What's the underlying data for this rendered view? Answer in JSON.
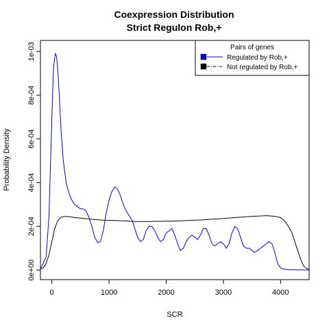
{
  "chart_data": {
    "type": "line",
    "title": [
      "Coexpression Distribution",
      "Strict Regulon Rob,+"
    ],
    "xlabel": "SCR",
    "ylabel": "Probability Density",
    "xlim": [
      -200,
      4500
    ],
    "ylim": [
      0,
      0.00101
    ],
    "x_ticks": [
      0,
      1000,
      2000,
      3000,
      4000
    ],
    "x_tick_labels": [
      "0",
      "1000",
      "2000",
      "3000",
      "4000"
    ],
    "y_ticks": [
      0,
      0.0002,
      0.0004,
      0.0006,
      0.0008,
      0.001
    ],
    "y_tick_labels": [
      "0e+00",
      "2e-04",
      "4e-04",
      "6e-04",
      "8e-04",
      "1e-03"
    ],
    "grid": false,
    "legend": {
      "title": "Pairs of genes",
      "placement": "top-right",
      "entries": [
        "Regulated by  Rob,+",
        "Not regulated by  Rob,+"
      ]
    },
    "series": [
      {
        "name": "Regulated by  Rob,+",
        "color": "#0000ff",
        "x": [
          -200,
          -100,
          -50,
          0,
          30,
          60,
          80,
          100,
          130,
          160,
          200,
          250,
          300,
          350,
          400,
          450,
          500,
          550,
          600,
          650,
          700,
          750,
          800,
          850,
          900,
          950,
          1000,
          1050,
          1100,
          1150,
          1200,
          1250,
          1300,
          1350,
          1400,
          1450,
          1500,
          1550,
          1600,
          1650,
          1700,
          1750,
          1800,
          1850,
          1900,
          1950,
          2000,
          2050,
          2100,
          2150,
          2200,
          2250,
          2300,
          2350,
          2400,
          2450,
          2500,
          2550,
          2600,
          2650,
          2700,
          2750,
          2800,
          2850,
          2900,
          2950,
          3000,
          3050,
          3100,
          3150,
          3200,
          3250,
          3300,
          3350,
          3400,
          3450,
          3500,
          3550,
          3600,
          3650,
          3700,
          3750,
          3800,
          3850,
          3900,
          3950,
          4000,
          4050,
          4100,
          4150,
          4200,
          4250,
          4300,
          4350,
          4400,
          4450,
          4500
        ],
        "values": [
          5e-06,
          6e-05,
          0.00025,
          0.0007,
          0.00093,
          0.00099,
          0.00098,
          0.00093,
          0.0008,
          0.00064,
          0.0005,
          0.0004,
          0.00035,
          0.00032,
          0.0003,
          0.00029,
          0.00028,
          0.00028,
          0.00027,
          0.00024,
          0.0002,
          0.00015,
          0.000125,
          0.00013,
          0.00018,
          0.00026,
          0.00032,
          0.00036,
          0.00038,
          0.00037,
          0.00034,
          0.0003,
          0.00027,
          0.00025,
          0.00023,
          0.00019,
          0.00015,
          0.00013,
          0.00014,
          0.00018,
          0.0002,
          0.0002,
          0.00018,
          0.00015,
          0.00013,
          0.00014,
          0.00017,
          0.00018,
          0.00019,
          0.00016,
          0.00012,
          9e-05,
          0.0001,
          0.00013,
          0.00015,
          0.00016,
          0.00015,
          0.00014,
          0.00016,
          0.00019,
          0.00019,
          0.00016,
          0.00012,
          0.00011,
          0.00012,
          0.00013,
          0.00012,
          0.0001,
          0.00012,
          0.00017,
          0.0002,
          0.00019,
          0.00015,
          0.00011,
          0.0001,
          0.0001,
          9e-05,
          8e-05,
          9e-05,
          0.0001,
          0.00011,
          0.00012,
          0.00013,
          0.00012,
          8e-05,
          3e-05,
          1e-05,
          5e-06,
          2.5e-06,
          1.5e-06,
          1.2e-06,
          1e-06,
          8e-07,
          6e-07,
          5e-07,
          4e-07,
          3e-07
        ]
      },
      {
        "name": "Not regulated by  Rob,+",
        "color": "#000000",
        "x": [
          -200,
          -150,
          -100,
          -50,
          0,
          50,
          100,
          150,
          200,
          300,
          400,
          500,
          600,
          700,
          800,
          900,
          1000,
          1100,
          1200,
          1300,
          1400,
          1500,
          1600,
          1700,
          1800,
          1900,
          2000,
          2100,
          2200,
          2300,
          2400,
          2500,
          2600,
          2700,
          2800,
          2900,
          3000,
          3100,
          3200,
          3300,
          3400,
          3500,
          3600,
          3700,
          3750,
          3800,
          3900,
          4000,
          4050,
          4100,
          4150,
          4200,
          4250,
          4300,
          4350,
          4400,
          4450,
          4500
        ],
        "values": [
          5e-06,
          1e-05,
          3e-05,
          7e-05,
          0.00013,
          0.00019,
          0.000225,
          0.00024,
          0.000245,
          0.000245,
          0.00024,
          0.000238,
          0.000235,
          0.000232,
          0.00023,
          0.000228,
          0.000227,
          0.000227,
          0.000226,
          0.000225,
          0.000223,
          0.000222,
          0.000222,
          0.000222,
          0.000223,
          0.000223,
          0.000224,
          0.000224,
          0.000225,
          0.000226,
          0.000227,
          0.000228,
          0.000229,
          0.000231,
          0.000233,
          0.000234,
          0.000236,
          0.000238,
          0.00024,
          0.000242,
          0.000244,
          0.000246,
          0.000247,
          0.000248,
          0.000249,
          0.000248,
          0.000246,
          0.00024,
          0.00023,
          0.000215,
          0.000195,
          0.00017,
          0.00013,
          9e-05,
          5e-05,
          2e-05,
          8e-06,
          4e-06
        ]
      }
    ]
  }
}
